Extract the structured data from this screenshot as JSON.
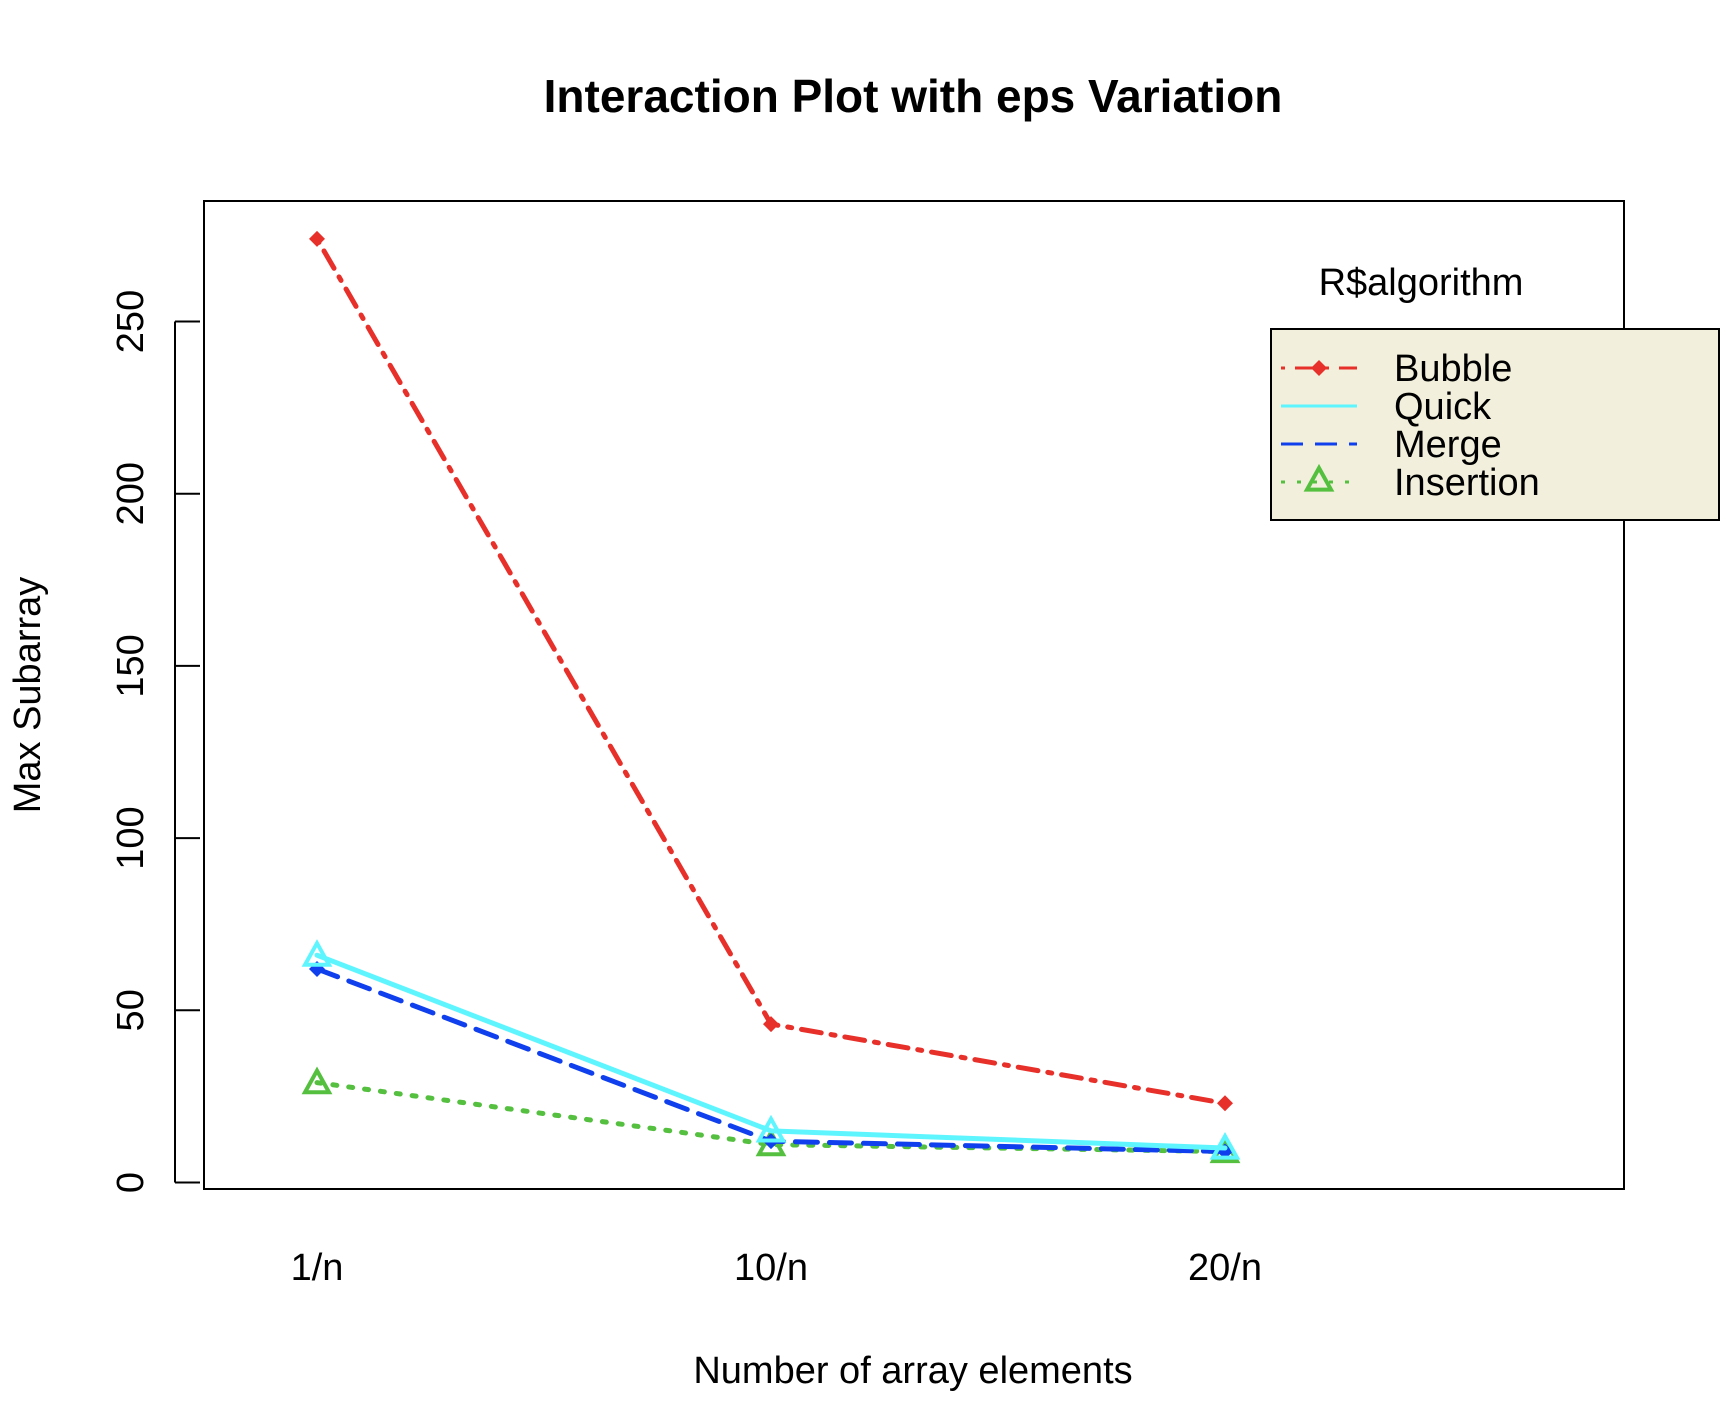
{
  "chart_data": {
    "type": "line",
    "title": "Interaction Plot with eps Variation",
    "xlabel": "Number of array elements",
    "ylabel": "Max Subarray",
    "categories": [
      "1/n",
      "10/n",
      "20/n"
    ],
    "ylim": [
      0,
      280
    ],
    "yticks": [
      0,
      50,
      100,
      150,
      200,
      250
    ],
    "legend": {
      "title": "R$algorithm",
      "placement": "top-right",
      "background": "#f2f0dc"
    },
    "series": [
      {
        "name": "Bubble",
        "values": [
          274,
          46,
          23
        ],
        "color": "#e8302a",
        "dash": "dashdot",
        "marker": "diamond"
      },
      {
        "name": "Quick",
        "values": [
          66,
          15,
          10
        ],
        "color": "#5ff5ff",
        "dash": "solid",
        "marker": "triangle"
      },
      {
        "name": "Merge",
        "values": [
          62,
          12,
          9
        ],
        "color": "#1040ee",
        "dash": "dashed",
        "marker": "diamond"
      },
      {
        "name": "Insertion",
        "values": [
          29,
          11,
          9
        ],
        "color": "#55c040",
        "dash": "dotted",
        "marker": "triangle"
      }
    ]
  }
}
